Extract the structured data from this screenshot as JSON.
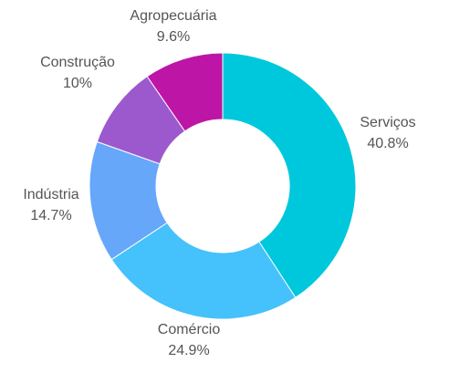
{
  "chart_data": {
    "type": "pie",
    "slices": [
      {
        "label": "Serviços",
        "value": 40.8,
        "display": "40.8%",
        "color": "#00C8DC"
      },
      {
        "label": "Comércio",
        "value": 24.9,
        "display": "24.9%",
        "color": "#45C1FB"
      },
      {
        "label": "Indústria",
        "value": 14.7,
        "display": "14.7%",
        "color": "#66A7FA"
      },
      {
        "label": "Construção",
        "value": 10,
        "display": "10%",
        "color": "#9C59CE"
      },
      {
        "label": "Agropecuária",
        "value": 9.6,
        "display": "9.6%",
        "color": "#BD15A6"
      }
    ]
  }
}
